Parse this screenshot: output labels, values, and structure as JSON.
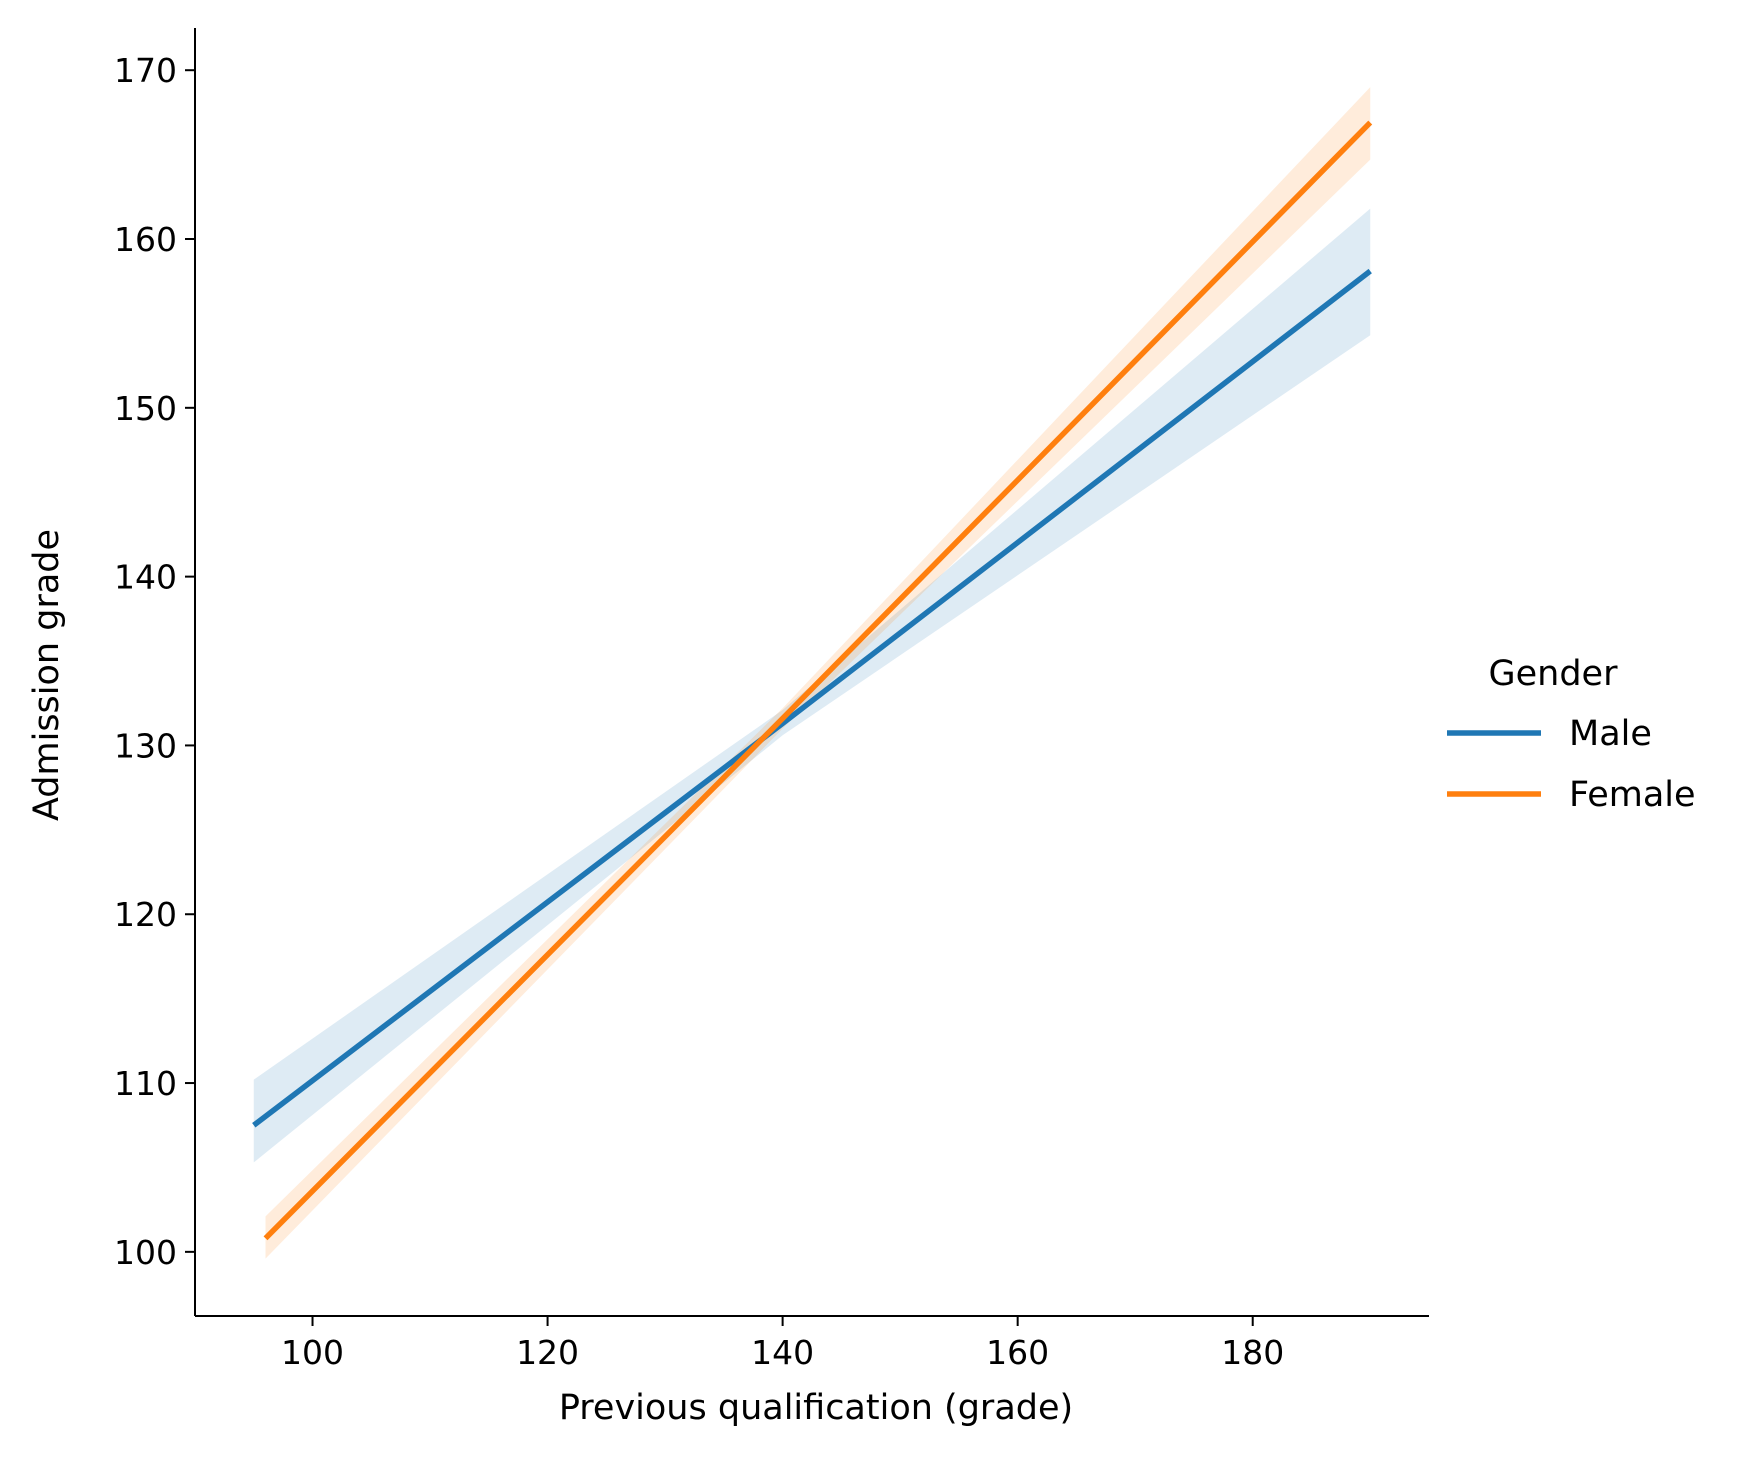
{
  "chart_data": {
    "type": "line",
    "title": "",
    "xlabel": "Previous qualification (grade)",
    "ylabel": "Admission grade",
    "xlim": [
      90,
      195
    ],
    "ylim": [
      96.2,
      172.5
    ],
    "xticks": [
      100,
      120,
      140,
      160,
      180
    ],
    "yticks": [
      100,
      110,
      120,
      130,
      140,
      150,
      160,
      170
    ],
    "grid": false,
    "legend": {
      "title": "Gender",
      "placement": "right, outside plot"
    },
    "series": [
      {
        "name": "Male",
        "color": "#1f77b4",
        "x": [
          95,
          140,
          190
        ],
        "y": [
          107.5,
          131.3,
          158.1
        ],
        "ci_lower": [
          105.3,
          130.6,
          154.3
        ],
        "ci_upper": [
          110.2,
          132.1,
          161.8
        ]
      },
      {
        "name": "Female",
        "color": "#ff7f0e",
        "x": [
          96,
          140,
          190
        ],
        "y": [
          100.8,
          131.6,
          166.9
        ],
        "ci_lower": [
          99.6,
          131.0,
          164.7
        ],
        "ci_upper": [
          102.1,
          132.2,
          169.0
        ]
      }
    ]
  }
}
